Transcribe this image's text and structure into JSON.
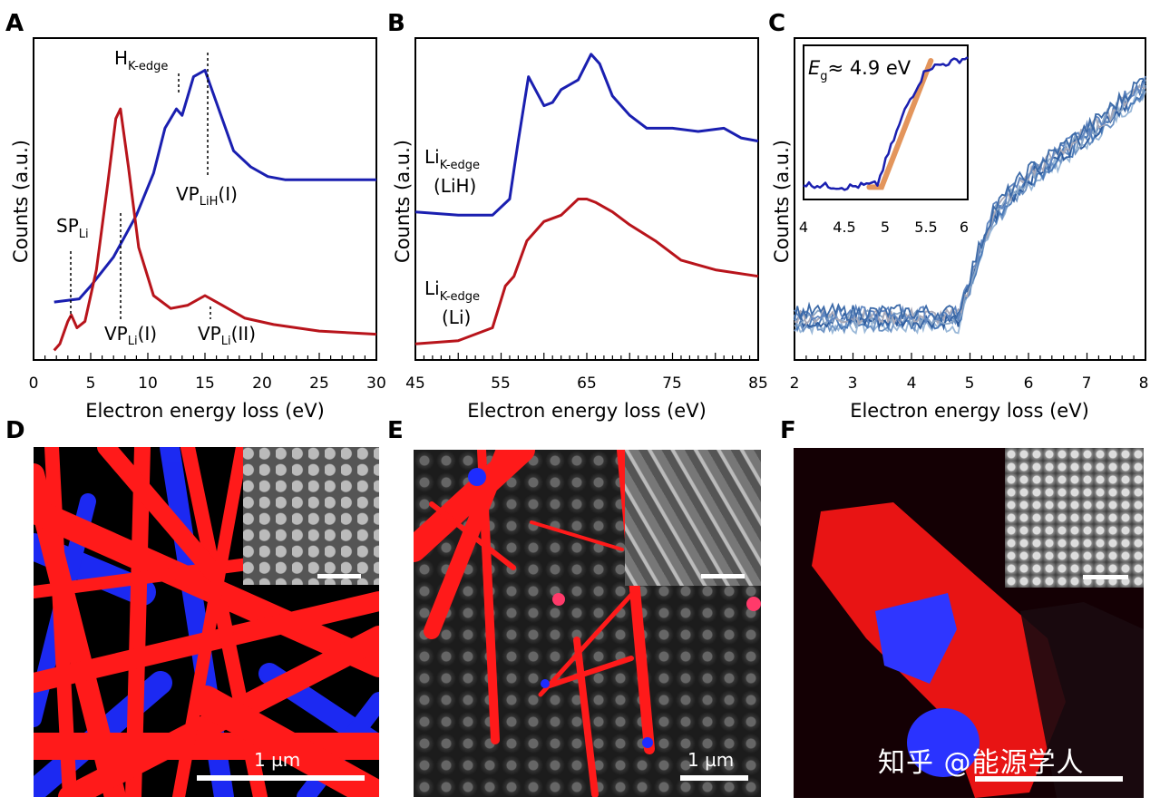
{
  "colors": {
    "blue": "#1a1fb0",
    "red": "#b8141b",
    "orange": "#e08a4a",
    "micro_red": "#ff1a1a",
    "micro_blue": "#1e2cff"
  },
  "panels": {
    "A": {
      "letter": "A",
      "ylabel": "Counts (a.u.)",
      "xlabel": "Electron energy loss (eV)",
      "ticks": [
        "0",
        "5",
        "10",
        "15",
        "20",
        "25",
        "30"
      ],
      "ann_hk": {
        "main": "H",
        "sub": "K-edge"
      },
      "ann_vplih": {
        "main": "VP",
        "sub": "LiH",
        "suffix": "(I)"
      },
      "ann_spli": {
        "main": "SP",
        "sub": "Li"
      },
      "ann_vpli1": {
        "main": "VP",
        "sub": "Li",
        "suffix": "(I)"
      },
      "ann_vpli2": {
        "main": "VP",
        "sub": "Li",
        "suffix": "(II)"
      }
    },
    "B": {
      "letter": "B",
      "ylabel": "Counts (a.u.)",
      "xlabel": "Electron energy loss (eV)",
      "ticks": [
        "45",
        "55",
        "65",
        "75",
        "85"
      ],
      "ann_lih": {
        "main": "Li",
        "sub": "K-edge",
        "line2": "(LiH)"
      },
      "ann_li": {
        "main": "Li",
        "sub": "K-edge",
        "line2": "(Li)"
      }
    },
    "C": {
      "letter": "C",
      "ylabel": "Counts (a.u.)",
      "xlabel": "Electron energy loss (eV)",
      "ticks": [
        "2",
        "3",
        "4",
        "5",
        "6",
        "7",
        "8"
      ],
      "inset": {
        "label_main": "E",
        "label_sub": "g",
        "label_rest": "≈ 4.9 eV",
        "ticks": [
          "4",
          "4.5",
          "5",
          "5.5",
          "6"
        ]
      }
    },
    "D": {
      "letter": "D",
      "scale_label": "1 µm"
    },
    "E": {
      "letter": "E",
      "scale_label": "1 µm"
    },
    "F": {
      "letter": "F"
    }
  },
  "watermark": "知乎 @能源学人",
  "chart_data": [
    {
      "type": "line",
      "panel": "A",
      "xlabel": "Electron energy loss (eV)",
      "ylabel": "Counts (a.u.)",
      "xlim": [
        0,
        30
      ],
      "series": [
        {
          "name": "LiH (blue)",
          "color": "#1a1fb0",
          "x": [
            1.8,
            4,
            5,
            7,
            9,
            10.5,
            11.5,
            12.5,
            13,
            14,
            15,
            16,
            17.5,
            19,
            20.5,
            22,
            24,
            27,
            30
          ],
          "y": [
            0.18,
            0.19,
            0.23,
            0.32,
            0.45,
            0.58,
            0.72,
            0.78,
            0.76,
            0.88,
            0.9,
            0.8,
            0.65,
            0.6,
            0.57,
            0.56,
            0.56,
            0.56,
            0.56
          ]
        },
        {
          "name": "Li (red)",
          "color": "#b8141b",
          "x": [
            1.8,
            2.3,
            3.0,
            3.3,
            3.8,
            4.5,
            5.5,
            6.5,
            7.2,
            7.6,
            8.3,
            9.2,
            10.5,
            12,
            13.5,
            15,
            16.5,
            18.5,
            21,
            25,
            30
          ],
          "y": [
            0.03,
            0.05,
            0.12,
            0.14,
            0.1,
            0.12,
            0.28,
            0.55,
            0.75,
            0.78,
            0.6,
            0.35,
            0.2,
            0.16,
            0.17,
            0.2,
            0.17,
            0.13,
            0.11,
            0.09,
            0.08
          ]
        }
      ]
    },
    {
      "type": "line",
      "panel": "B",
      "xlabel": "Electron energy loss (eV)",
      "ylabel": "Counts (a.u.)",
      "xlim": [
        45,
        85
      ],
      "series": [
        {
          "name": "LiH (blue)",
          "color": "#1a1fb0",
          "x": [
            45,
            50,
            54,
            56,
            57,
            58.2,
            59,
            60,
            61,
            62,
            64,
            65.5,
            66.5,
            68,
            70,
            72,
            75,
            78,
            81,
            83,
            85
          ],
          "y": [
            0.46,
            0.45,
            0.45,
            0.5,
            0.68,
            0.88,
            0.84,
            0.79,
            0.8,
            0.84,
            0.87,
            0.95,
            0.92,
            0.82,
            0.76,
            0.72,
            0.72,
            0.71,
            0.72,
            0.69,
            0.68
          ]
        },
        {
          "name": "Li (red)",
          "color": "#b8141b",
          "x": [
            45,
            50,
            54,
            55.5,
            56.5,
            58,
            60,
            62,
            64,
            65,
            66,
            68,
            70,
            73,
            76,
            80,
            85
          ],
          "y": [
            0.05,
            0.06,
            0.1,
            0.23,
            0.26,
            0.37,
            0.43,
            0.45,
            0.5,
            0.5,
            0.49,
            0.46,
            0.42,
            0.37,
            0.31,
            0.28,
            0.26
          ]
        }
      ]
    },
    {
      "type": "line",
      "panel": "C",
      "xlabel": "Electron energy loss (eV)",
      "ylabel": "Counts (a.u.)",
      "xlim": [
        2,
        8
      ],
      "series": [
        {
          "name": "spectra (multiple blues)",
          "x": [
            2,
            3,
            4,
            4.8,
            5.1,
            5.4,
            6,
            7,
            8
          ],
          "y": [
            0.13,
            0.13,
            0.13,
            0.13,
            0.3,
            0.45,
            0.57,
            0.7,
            0.86
          ]
        }
      ],
      "inset": {
        "xlim": [
          4,
          6
        ],
        "annotation": "Eg ≈ 4.9 eV",
        "series": [
          {
            "name": "data",
            "color": "#1a1fb0",
            "x": [
              4,
              4.5,
              4.9,
              5.0,
              5.25,
              5.5,
              6
            ],
            "y": [
              0.1,
              0.08,
              0.1,
              0.25,
              0.6,
              0.85,
              0.92
            ]
          },
          {
            "name": "fit",
            "color": "#e08a4a",
            "x": [
              4.8,
              4.95,
              5.55
            ],
            "y": [
              0.08,
              0.08,
              0.9
            ]
          }
        ]
      }
    }
  ]
}
